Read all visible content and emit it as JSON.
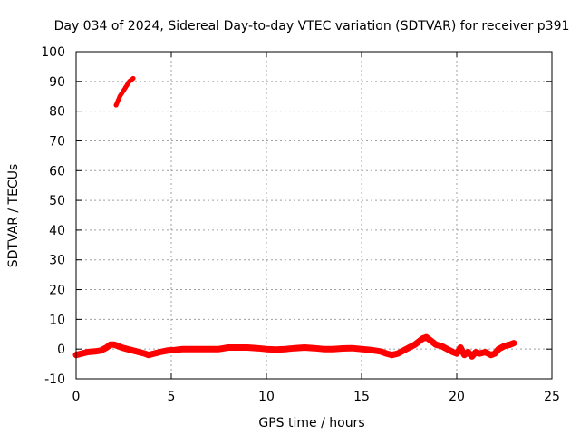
{
  "chart_data": {
    "type": "scatter",
    "title": "Day 034 of 2024, Sidereal Day-to-day VTEC variation (SDTVAR) for receiver p391",
    "xlabel": "GPS time / hours",
    "ylabel": "SDTVAR / TECUs",
    "xlim": [
      0,
      25
    ],
    "ylim": [
      -10,
      100
    ],
    "xticks": [
      0,
      5,
      10,
      15,
      20,
      25
    ],
    "xtick_labels": [
      "0",
      "5",
      "10",
      "15",
      "20",
      "25"
    ],
    "yticks": [
      -10,
      0,
      10,
      20,
      30,
      40,
      50,
      60,
      70,
      80,
      90,
      100
    ],
    "ytick_labels": [
      "-10",
      "0",
      "10",
      "20",
      "30",
      "40",
      "50",
      "60",
      "70",
      "80",
      "90",
      "100"
    ],
    "grid": true,
    "series": [
      {
        "name": "SDTVAR main",
        "color": "#ff0000",
        "x": [
          0.0,
          0.3,
          0.6,
          1.0,
          1.3,
          1.6,
          1.8,
          2.0,
          2.2,
          2.4,
          2.7,
          3.0,
          3.3,
          3.6,
          3.8,
          4.1,
          4.4,
          4.8,
          5.2,
          5.6,
          6.0,
          6.5,
          7.0,
          7.5,
          8.0,
          8.5,
          9.0,
          9.5,
          10.0,
          10.5,
          11.0,
          11.5,
          12.0,
          12.5,
          13.0,
          13.5,
          14.0,
          14.5,
          15.0,
          15.5,
          16.0,
          16.3,
          16.6,
          16.9,
          17.2,
          17.5,
          17.8,
          18.0,
          18.2,
          18.4,
          18.6,
          18.9,
          19.2,
          19.5,
          19.8,
          20.0,
          20.2,
          20.4,
          20.6,
          20.8,
          21.0,
          21.2,
          21.5,
          21.8,
          22.0,
          22.2,
          22.5,
          22.8,
          23.0
        ],
        "y": [
          -2.0,
          -1.5,
          -1.0,
          -0.8,
          -0.5,
          0.5,
          1.5,
          1.5,
          1.0,
          0.5,
          0.0,
          -0.5,
          -1.0,
          -1.5,
          -2.0,
          -1.5,
          -1.0,
          -0.5,
          -0.3,
          0.0,
          0.0,
          0.0,
          0.0,
          0.0,
          0.5,
          0.5,
          0.5,
          0.3,
          0.0,
          -0.2,
          0.0,
          0.3,
          0.5,
          0.3,
          0.0,
          0.0,
          0.2,
          0.3,
          0.0,
          -0.3,
          -0.8,
          -1.5,
          -2.0,
          -1.5,
          -0.5,
          0.5,
          1.5,
          2.5,
          3.5,
          4.0,
          3.0,
          1.5,
          1.0,
          0.0,
          -1.0,
          -1.5,
          0.5,
          -2.0,
          -1.0,
          -2.5,
          -1.0,
          -1.5,
          -1.0,
          -2.0,
          -1.5,
          0.0,
          1.0,
          1.5,
          2.0
        ]
      },
      {
        "name": "SDTVAR segment",
        "color": "#ff0000",
        "x": [
          2.1,
          2.2,
          2.3,
          2.4,
          2.5,
          2.6,
          2.7,
          2.8,
          2.9,
          3.0
        ],
        "y": [
          82.0,
          83.5,
          85.0,
          86.0,
          87.0,
          88.0,
          89.0,
          90.0,
          90.5,
          91.0
        ]
      }
    ]
  }
}
